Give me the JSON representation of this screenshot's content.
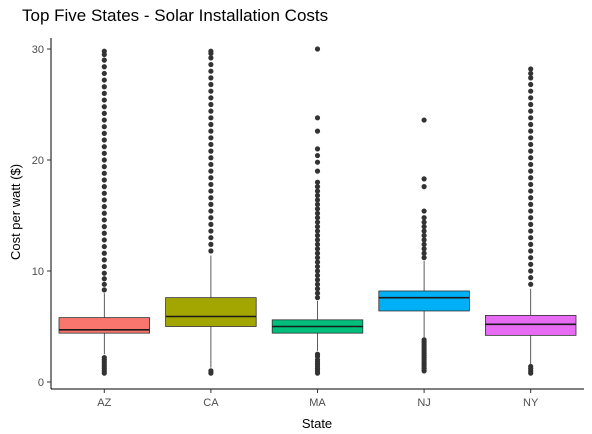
{
  "chart_data": {
    "type": "box",
    "title": "Top Five States - Solar Installation Costs",
    "xlabel": "State",
    "ylabel": "Cost per watt ($)",
    "ylim": [
      -0.5,
      30.5
    ],
    "yticks": [
      0,
      10,
      20,
      30
    ],
    "grid": false,
    "legend": "none",
    "categories": [
      "AZ",
      "CA",
      "MA",
      "NJ",
      "NY"
    ],
    "boxes": [
      {
        "category": "AZ",
        "color": "#F8766D",
        "whisker_low": 2.5,
        "q1": 4.4,
        "median": 4.7,
        "q3": 5.8,
        "whisker_high": 8.0,
        "outliers": [
          0.8,
          1.0,
          1.2,
          1.4,
          1.6,
          1.8,
          2.0,
          2.2,
          8.3,
          8.8,
          9.3,
          9.8,
          10.4,
          11.0,
          11.6,
          12.2,
          12.8,
          13.4,
          14.0,
          14.6,
          15.2,
          15.8,
          16.4,
          17.0,
          17.6,
          18.2,
          18.8,
          19.4,
          20.0,
          20.6,
          21.2,
          21.8,
          22.4,
          23.0,
          23.6,
          24.2,
          24.8,
          25.4,
          26.0,
          26.6,
          27.2,
          27.8,
          28.4,
          29.0,
          29.5,
          29.8
        ]
      },
      {
        "category": "CA",
        "color": "#A3A500",
        "whisker_low": 1.3,
        "q1": 5.0,
        "median": 5.9,
        "q3": 7.6,
        "whisker_high": 11.4,
        "outliers": [
          0.8,
          1.0,
          11.8,
          12.4,
          13.0,
          13.6,
          14.2,
          14.8,
          15.4,
          16.0,
          16.6,
          17.2,
          17.8,
          18.4,
          19.0,
          19.6,
          20.2,
          20.8,
          21.4,
          22.0,
          22.6,
          23.2,
          23.8,
          24.4,
          25.0,
          25.6,
          26.2,
          26.8,
          27.4,
          28.0,
          28.6,
          29.2,
          29.6,
          29.8
        ]
      },
      {
        "category": "MA",
        "color": "#00BF7D",
        "whisker_low": 2.8,
        "q1": 4.4,
        "median": 5.0,
        "q3": 5.6,
        "whisker_high": 7.3,
        "outliers": [
          0.8,
          1.0,
          1.2,
          1.4,
          1.6,
          1.8,
          2.0,
          2.3,
          2.5,
          7.6,
          8.0,
          8.4,
          8.8,
          9.2,
          9.6,
          10.0,
          10.4,
          10.8,
          11.2,
          11.6,
          12.0,
          12.4,
          12.8,
          13.2,
          13.6,
          14.0,
          14.4,
          14.8,
          15.2,
          15.6,
          16.0,
          16.4,
          16.8,
          17.2,
          17.6,
          18.0,
          19.0,
          19.8,
          20.4,
          21.0,
          22.6,
          23.8,
          30.0
        ]
      },
      {
        "category": "NJ",
        "color": "#00B0F6",
        "whisker_low": 4.0,
        "q1": 6.4,
        "median": 7.6,
        "q3": 8.2,
        "whisker_high": 10.9,
        "outliers": [
          1.0,
          1.2,
          1.4,
          1.6,
          1.8,
          2.0,
          2.2,
          2.4,
          2.6,
          2.8,
          3.0,
          3.2,
          3.4,
          3.6,
          3.8,
          11.2,
          11.6,
          12.0,
          12.4,
          12.8,
          13.2,
          13.6,
          14.0,
          14.4,
          14.8,
          15.4,
          17.6,
          18.3,
          23.6
        ]
      },
      {
        "category": "NY",
        "color": "#E76BF3",
        "whisker_low": 1.6,
        "q1": 4.2,
        "median": 5.2,
        "q3": 6.0,
        "whisker_high": 8.4,
        "outliers": [
          0.8,
          1.0,
          1.2,
          1.4,
          8.8,
          9.4,
          10.0,
          10.6,
          11.2,
          11.8,
          12.4,
          13.0,
          13.6,
          14.2,
          14.8,
          15.4,
          16.0,
          16.6,
          17.2,
          17.8,
          18.4,
          19.0,
          19.6,
          20.2,
          20.8,
          21.4,
          22.0,
          22.6,
          23.2,
          23.8,
          24.4,
          25.0,
          25.6,
          26.2,
          26.8,
          27.4,
          27.8,
          28.2
        ]
      }
    ]
  }
}
